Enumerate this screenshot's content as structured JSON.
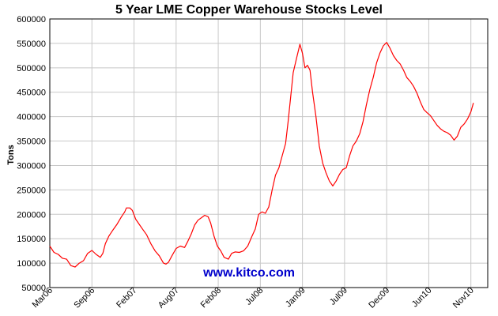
{
  "chart_data": {
    "type": "line",
    "title": "5 Year LME Copper Warehouse Stocks Level",
    "ylabel": "Tons",
    "xlabel": "",
    "ylim": [
      50000,
      600000
    ],
    "yticks": [
      50000,
      100000,
      150000,
      200000,
      250000,
      300000,
      350000,
      400000,
      450000,
      500000,
      550000,
      600000
    ],
    "xticks": [
      "Mar06",
      "Sep06",
      "Feb07",
      "Aug07",
      "Feb08",
      "Jul08",
      "Jan09",
      "Jul09",
      "Dec09",
      "Jun10",
      "Nov10"
    ],
    "grid": true,
    "legend": "none",
    "line_color": "#ff0000",
    "watermark": "www.kitco.com",
    "watermark_color": "#0000cc",
    "series": [
      {
        "values": [
          [
            0.0,
            135000
          ],
          [
            0.5,
            122000
          ],
          [
            1.0,
            118000
          ],
          [
            1.5,
            110000
          ],
          [
            2.0,
            108000
          ],
          [
            2.5,
            95000
          ],
          [
            3.0,
            92000
          ],
          [
            3.5,
            100000
          ],
          [
            4.0,
            105000
          ],
          [
            4.5,
            120000
          ],
          [
            5.0,
            126000
          ],
          [
            5.5,
            118000
          ],
          [
            6.0,
            112000
          ],
          [
            6.3,
            120000
          ],
          [
            6.6,
            140000
          ],
          [
            7.0,
            155000
          ],
          [
            7.5,
            168000
          ],
          [
            8.0,
            180000
          ],
          [
            8.5,
            195000
          ],
          [
            8.9,
            205000
          ],
          [
            9.1,
            213000
          ],
          [
            9.5,
            213000
          ],
          [
            9.8,
            208000
          ],
          [
            10.2,
            190000
          ],
          [
            10.6,
            180000
          ],
          [
            11.0,
            170000
          ],
          [
            11.5,
            158000
          ],
          [
            12.0,
            140000
          ],
          [
            12.5,
            125000
          ],
          [
            13.0,
            115000
          ],
          [
            13.5,
            100000
          ],
          [
            13.8,
            98000
          ],
          [
            14.1,
            102000
          ],
          [
            14.5,
            115000
          ],
          [
            15.0,
            130000
          ],
          [
            15.5,
            135000
          ],
          [
            16.0,
            132000
          ],
          [
            16.4,
            145000
          ],
          [
            16.8,
            160000
          ],
          [
            17.2,
            178000
          ],
          [
            17.6,
            188000
          ],
          [
            18.0,
            193000
          ],
          [
            18.4,
            198000
          ],
          [
            18.8,
            195000
          ],
          [
            19.1,
            182000
          ],
          [
            19.5,
            155000
          ],
          [
            19.9,
            135000
          ],
          [
            20.3,
            125000
          ],
          [
            20.7,
            112000
          ],
          [
            21.2,
            108000
          ],
          [
            21.6,
            120000
          ],
          [
            22.0,
            123000
          ],
          [
            22.5,
            122000
          ],
          [
            23.0,
            125000
          ],
          [
            23.5,
            135000
          ],
          [
            24.0,
            155000
          ],
          [
            24.4,
            170000
          ],
          [
            24.8,
            200000
          ],
          [
            25.2,
            205000
          ],
          [
            25.6,
            202000
          ],
          [
            26.0,
            215000
          ],
          [
            26.4,
            250000
          ],
          [
            26.8,
            280000
          ],
          [
            27.2,
            295000
          ],
          [
            27.6,
            320000
          ],
          [
            28.0,
            345000
          ],
          [
            28.3,
            390000
          ],
          [
            28.6,
            440000
          ],
          [
            28.9,
            490000
          ],
          [
            29.3,
            520000
          ],
          [
            29.7,
            548000
          ],
          [
            30.0,
            530000
          ],
          [
            30.3,
            500000
          ],
          [
            30.6,
            505000
          ],
          [
            30.9,
            495000
          ],
          [
            31.2,
            450000
          ],
          [
            31.6,
            400000
          ],
          [
            32.0,
            340000
          ],
          [
            32.4,
            305000
          ],
          [
            32.8,
            285000
          ],
          [
            33.2,
            268000
          ],
          [
            33.6,
            258000
          ],
          [
            34.0,
            268000
          ],
          [
            34.4,
            282000
          ],
          [
            34.8,
            292000
          ],
          [
            35.2,
            295000
          ],
          [
            35.6,
            320000
          ],
          [
            36.0,
            340000
          ],
          [
            36.4,
            350000
          ],
          [
            36.8,
            365000
          ],
          [
            37.2,
            390000
          ],
          [
            37.6,
            425000
          ],
          [
            38.0,
            455000
          ],
          [
            38.4,
            480000
          ],
          [
            38.8,
            510000
          ],
          [
            39.2,
            530000
          ],
          [
            39.6,
            545000
          ],
          [
            40.0,
            552000
          ],
          [
            40.4,
            540000
          ],
          [
            40.8,
            525000
          ],
          [
            41.2,
            515000
          ],
          [
            41.6,
            508000
          ],
          [
            42.0,
            495000
          ],
          [
            42.4,
            480000
          ],
          [
            42.8,
            472000
          ],
          [
            43.2,
            462000
          ],
          [
            43.6,
            448000
          ],
          [
            44.0,
            430000
          ],
          [
            44.4,
            415000
          ],
          [
            44.8,
            408000
          ],
          [
            45.2,
            402000
          ],
          [
            45.6,
            392000
          ],
          [
            46.0,
            382000
          ],
          [
            46.4,
            375000
          ],
          [
            46.8,
            370000
          ],
          [
            47.2,
            367000
          ],
          [
            47.6,
            362000
          ],
          [
            48.0,
            352000
          ],
          [
            48.4,
            360000
          ],
          [
            48.8,
            378000
          ],
          [
            49.2,
            385000
          ],
          [
            49.6,
            395000
          ],
          [
            50.0,
            410000
          ],
          [
            50.3,
            428000
          ]
        ]
      }
    ]
  }
}
